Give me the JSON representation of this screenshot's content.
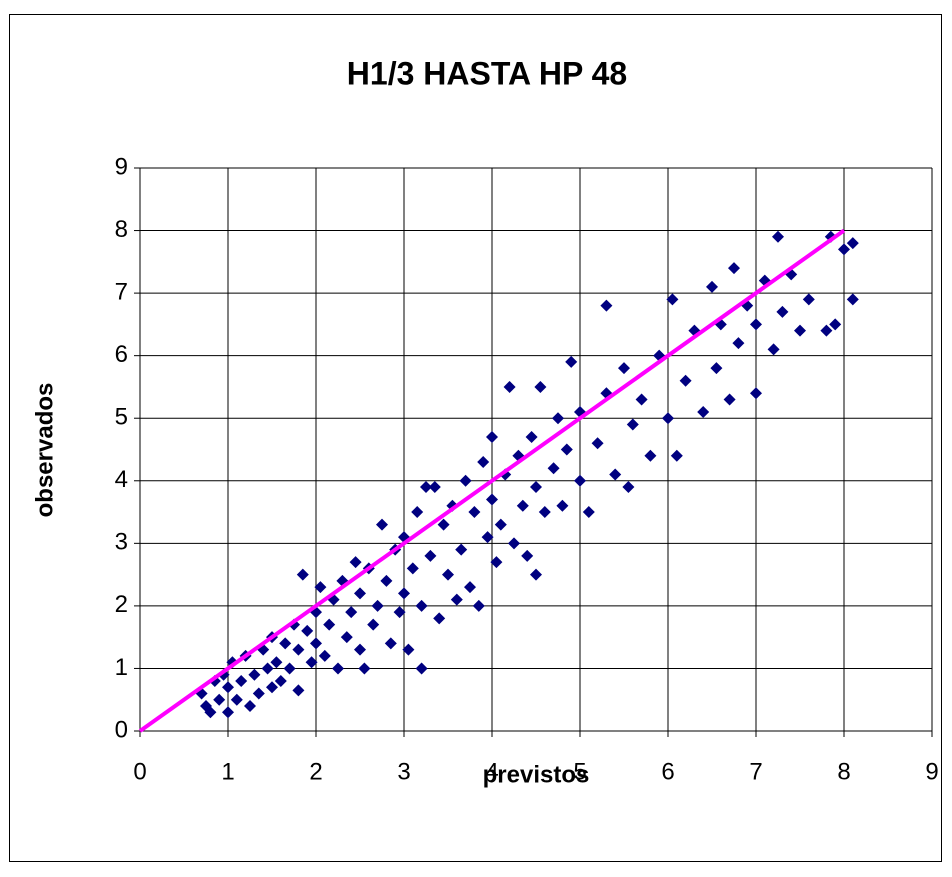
{
  "chart_data": {
    "type": "scatter",
    "title": "H1/3 HASTA HP 48",
    "x_label": "previstos",
    "y_label": "observados",
    "xlim": [
      0,
      9
    ],
    "ylim": [
      0,
      9
    ],
    "xticks": [
      0,
      1,
      2,
      3,
      4,
      5,
      6,
      7,
      8,
      9
    ],
    "yticks": [
      0,
      1,
      2,
      3,
      4,
      5,
      6,
      7,
      8,
      9
    ],
    "grid": true,
    "series": [
      {
        "type": "scatter",
        "color": "#000080",
        "x": [
          0.7,
          0.75,
          0.8,
          0.85,
          0.9,
          0.95,
          1.0,
          1.0,
          1.05,
          1.1,
          1.15,
          1.2,
          1.25,
          1.3,
          1.35,
          1.4,
          1.45,
          1.5,
          1.5,
          1.55,
          1.6,
          1.65,
          1.7,
          1.75,
          1.8,
          1.8,
          1.85,
          1.9,
          1.95,
          2.0,
          2.0,
          2.05,
          2.1,
          2.15,
          2.2,
          2.25,
          2.3,
          2.35,
          2.4,
          2.45,
          2.5,
          2.5,
          2.55,
          2.6,
          2.65,
          2.7,
          2.75,
          2.8,
          2.85,
          2.9,
          2.95,
          3.0,
          3.0,
          3.05,
          3.1,
          3.15,
          3.2,
          3.2,
          3.25,
          3.3,
          3.35,
          3.4,
          3.45,
          3.5,
          3.55,
          3.6,
          3.65,
          3.7,
          3.75,
          3.8,
          3.85,
          3.9,
          3.95,
          4.0,
          4.0,
          4.05,
          4.1,
          4.15,
          4.2,
          4.25,
          4.3,
          4.35,
          4.4,
          4.45,
          4.5,
          4.5,
          4.55,
          4.6,
          4.7,
          4.75,
          4.8,
          4.85,
          4.9,
          5.0,
          5.0,
          5.1,
          5.2,
          5.3,
          5.3,
          5.4,
          5.5,
          5.55,
          5.6,
          5.7,
          5.8,
          5.9,
          6.0,
          6.05,
          6.1,
          6.2,
          6.3,
          6.4,
          6.5,
          6.55,
          6.6,
          6.7,
          6.75,
          6.8,
          6.9,
          7.0,
          7.0,
          7.1,
          7.2,
          7.25,
          7.3,
          7.4,
          7.5,
          7.6,
          7.8,
          7.85,
          7.9,
          8.0,
          8.1,
          8.1
        ],
        "values": [
          0.6,
          0.4,
          0.3,
          0.8,
          0.5,
          0.9,
          0.3,
          0.7,
          1.1,
          0.5,
          0.8,
          1.2,
          0.4,
          0.9,
          0.6,
          1.3,
          1.0,
          0.7,
          1.5,
          1.1,
          0.8,
          1.4,
          1.0,
          1.7,
          0.65,
          1.3,
          2.5,
          1.6,
          1.1,
          1.9,
          1.4,
          2.3,
          1.2,
          1.7,
          2.1,
          1.0,
          2.4,
          1.5,
          1.9,
          2.7,
          1.3,
          2.2,
          1.0,
          2.6,
          1.7,
          2.0,
          3.3,
          2.4,
          1.4,
          2.9,
          1.9,
          2.2,
          3.1,
          1.3,
          2.6,
          3.5,
          1.0,
          2.0,
          3.9,
          2.8,
          3.9,
          1.8,
          3.3,
          2.5,
          3.6,
          2.1,
          2.9,
          4.0,
          2.3,
          3.5,
          2.0,
          4.3,
          3.1,
          3.7,
          4.7,
          2.7,
          3.3,
          4.1,
          5.5,
          3.0,
          4.4,
          3.6,
          2.8,
          4.7,
          2.5,
          3.9,
          5.5,
          3.5,
          4.2,
          5.0,
          3.6,
          4.5,
          5.9,
          4.0,
          5.1,
          3.5,
          4.6,
          6.8,
          5.4,
          4.1,
          5.8,
          3.9,
          4.9,
          5.3,
          4.4,
          6.0,
          5.0,
          6.9,
          4.4,
          5.6,
          6.4,
          5.1,
          7.1,
          5.8,
          6.5,
          5.3,
          7.4,
          6.2,
          6.8,
          5.4,
          6.5,
          7.2,
          6.1,
          7.9,
          6.7,
          7.3,
          6.4,
          6.9,
          6.4,
          7.9,
          6.5,
          7.7,
          7.8,
          6.9
        ]
      },
      {
        "type": "line",
        "color": "#ff00ff",
        "x": [
          0,
          8
        ],
        "values": [
          0,
          8
        ]
      }
    ]
  }
}
